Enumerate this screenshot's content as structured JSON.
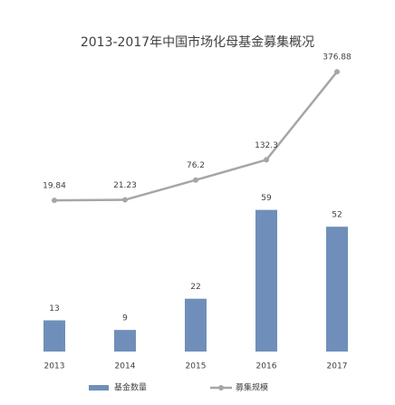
{
  "chart_data": {
    "type": "bar",
    "title": "2013-2017年中国市场化母基金募集概况",
    "categories": [
      "2013",
      "2014",
      "2015",
      "2016",
      "2017"
    ],
    "series": [
      {
        "name": "基金数量",
        "type": "bar",
        "color": "#6f8fba",
        "values": [
          13,
          9,
          22,
          59,
          52
        ]
      },
      {
        "name": "募集规模",
        "type": "line",
        "axis": "y2",
        "color": "#a6a6a6",
        "values": [
          19.84,
          21.23,
          76.2,
          132.3,
          376.88
        ]
      }
    ],
    "ylim": [
      0,
      120
    ],
    "y2lim": [
      -400,
      400
    ],
    "grid": false,
    "legend": "bottom"
  }
}
